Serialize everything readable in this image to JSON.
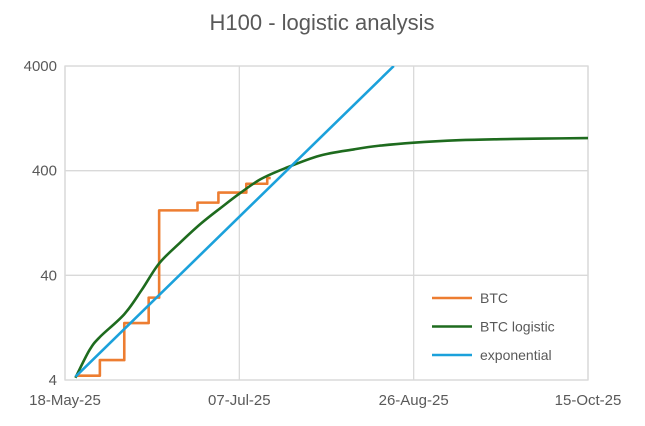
{
  "chart_data": {
    "type": "line",
    "title": "H100 - logistic analysis",
    "xlabel": "",
    "ylabel": "",
    "x_unit": "days since 18-May-25",
    "xlim": [
      0,
      150
    ],
    "ylim": [
      4,
      4000
    ],
    "y_scale": "log",
    "x_ticks": [
      {
        "value": 0,
        "label": "18-May-25"
      },
      {
        "value": 50,
        "label": "07-Jul-25"
      },
      {
        "value": 100,
        "label": "26-Aug-25"
      },
      {
        "value": 150,
        "label": "15-Oct-25"
      }
    ],
    "y_ticks": [
      {
        "value": 4,
        "label": "4"
      },
      {
        "value": 40,
        "label": "40"
      },
      {
        "value": 400,
        "label": "400"
      },
      {
        "value": 4000,
        "label": "4000"
      }
    ],
    "grid": true,
    "legend_position": "bottom-right",
    "series": [
      {
        "name": "BTC",
        "color": "#ED7D31",
        "style": "step",
        "x": [
          3,
          10,
          17,
          24,
          27,
          38,
          44,
          52,
          58,
          59
        ],
        "y": [
          4.4,
          6.2,
          14,
          24.5,
          167,
          198,
          247,
          300,
          340,
          340
        ]
      },
      {
        "name": "BTC logistic",
        "color": "#1E6B1E",
        "style": "line",
        "x": [
          3,
          7,
          10,
          17,
          22,
          27,
          33,
          39,
          45,
          50,
          56,
          63,
          73,
          83,
          90,
          100,
          113,
          125,
          137,
          150
        ],
        "y": [
          4.2,
          7.7,
          10.3,
          17,
          29,
          52,
          82,
          125,
          180,
          241,
          330,
          420,
          556,
          640,
          692,
          741,
          782,
          800,
          810,
          820
        ]
      },
      {
        "name": "exponential",
        "color": "#1BA1DB",
        "style": "line",
        "x": [
          3,
          94.3
        ],
        "y": [
          4.3,
          4000
        ]
      }
    ]
  }
}
